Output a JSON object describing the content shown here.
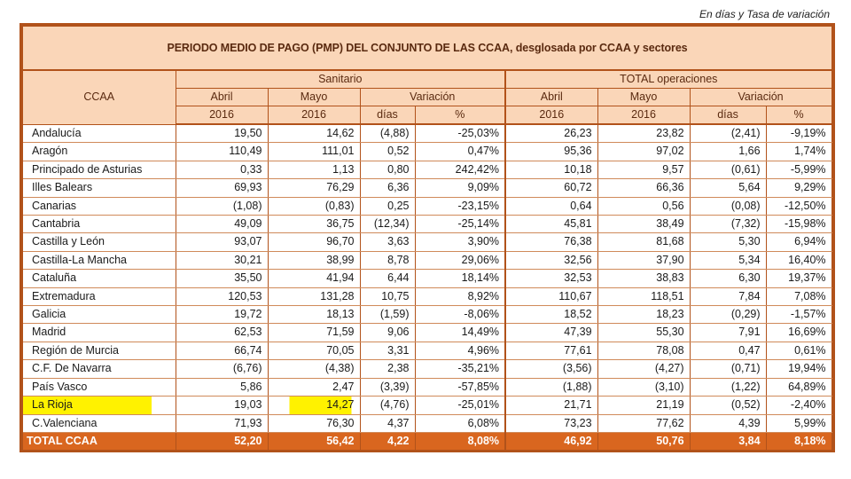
{
  "units_note": "En días y Tasa de variación",
  "title": "PERIODO MEDIO DE PAGO (PMP) DEL CONJUNTO DE LAS CCAA, desglosada por CCAA y sectores",
  "header": {
    "ccaa": "CCAA",
    "sanitario": "Sanitario",
    "total": "TOTAL operaciones",
    "abril": "Abril",
    "mayo": "Mayo",
    "variacion": "Variación",
    "year": "2016",
    "dias": "días",
    "pct": "%"
  },
  "rows": [
    {
      "name": "Andalucía",
      "s_abr": "19,50",
      "s_may": "14,62",
      "s_dias": "(4,88)",
      "s_pct": "-25,03%",
      "t_abr": "26,23",
      "t_may": "23,82",
      "t_dias": "(2,41)",
      "t_pct": "-9,19%"
    },
    {
      "name": "Aragón",
      "s_abr": "110,49",
      "s_may": "111,01",
      "s_dias": "0,52",
      "s_pct": "0,47%",
      "t_abr": "95,36",
      "t_may": "97,02",
      "t_dias": "1,66",
      "t_pct": "1,74%"
    },
    {
      "name": "Principado de Asturias",
      "s_abr": "0,33",
      "s_may": "1,13",
      "s_dias": "0,80",
      "s_pct": "242,42%",
      "t_abr": "10,18",
      "t_may": "9,57",
      "t_dias": "(0,61)",
      "t_pct": "-5,99%"
    },
    {
      "name": "Illes Balears",
      "s_abr": "69,93",
      "s_may": "76,29",
      "s_dias": "6,36",
      "s_pct": "9,09%",
      "t_abr": "60,72",
      "t_may": "66,36",
      "t_dias": "5,64",
      "t_pct": "9,29%"
    },
    {
      "name": "Canarias",
      "s_abr": "(1,08)",
      "s_may": "(0,83)",
      "s_dias": "0,25",
      "s_pct": "-23,15%",
      "t_abr": "0,64",
      "t_may": "0,56",
      "t_dias": "(0,08)",
      "t_pct": "-12,50%"
    },
    {
      "name": "Cantabria",
      "s_abr": "49,09",
      "s_may": "36,75",
      "s_dias": "(12,34)",
      "s_pct": "-25,14%",
      "t_abr": "45,81",
      "t_may": "38,49",
      "t_dias": "(7,32)",
      "t_pct": "-15,98%"
    },
    {
      "name": "Castilla y León",
      "s_abr": "93,07",
      "s_may": "96,70",
      "s_dias": "3,63",
      "s_pct": "3,90%",
      "t_abr": "76,38",
      "t_may": "81,68",
      "t_dias": "5,30",
      "t_pct": "6,94%"
    },
    {
      "name": "Castilla-La Mancha",
      "s_abr": "30,21",
      "s_may": "38,99",
      "s_dias": "8,78",
      "s_pct": "29,06%",
      "t_abr": "32,56",
      "t_may": "37,90",
      "t_dias": "5,34",
      "t_pct": "16,40%"
    },
    {
      "name": "Cataluña",
      "s_abr": "35,50",
      "s_may": "41,94",
      "s_dias": "6,44",
      "s_pct": "18,14%",
      "t_abr": "32,53",
      "t_may": "38,83",
      "t_dias": "6,30",
      "t_pct": "19,37%"
    },
    {
      "name": "Extremadura",
      "s_abr": "120,53",
      "s_may": "131,28",
      "s_dias": "10,75",
      "s_pct": "8,92%",
      "t_abr": "110,67",
      "t_may": "118,51",
      "t_dias": "7,84",
      "t_pct": "7,08%"
    },
    {
      "name": "Galicia",
      "s_abr": "19,72",
      "s_may": "18,13",
      "s_dias": "(1,59)",
      "s_pct": "-8,06%",
      "t_abr": "18,52",
      "t_may": "18,23",
      "t_dias": "(0,29)",
      "t_pct": "-1,57%"
    },
    {
      "name": "Madrid",
      "s_abr": "62,53",
      "s_may": "71,59",
      "s_dias": "9,06",
      "s_pct": "14,49%",
      "t_abr": "47,39",
      "t_may": "55,30",
      "t_dias": "7,91",
      "t_pct": "16,69%"
    },
    {
      "name": "Región de Murcia",
      "s_abr": "66,74",
      "s_may": "70,05",
      "s_dias": "3,31",
      "s_pct": "4,96%",
      "t_abr": "77,61",
      "t_may": "78,08",
      "t_dias": "0,47",
      "t_pct": "0,61%"
    },
    {
      "name": "C.F. De Navarra",
      "s_abr": "(6,76)",
      "s_may": "(4,38)",
      "s_dias": "2,38",
      "s_pct": "-35,21%",
      "t_abr": "(3,56)",
      "t_may": "(4,27)",
      "t_dias": "(0,71)",
      "t_pct": "19,94%"
    },
    {
      "name": "País Vasco",
      "s_abr": "5,86",
      "s_may": "2,47",
      "s_dias": "(3,39)",
      "s_pct": "-57,85%",
      "t_abr": "(1,88)",
      "t_may": "(3,10)",
      "t_dias": "(1,22)",
      "t_pct": "64,89%"
    },
    {
      "name": "La Rioja",
      "s_abr": "19,03",
      "s_may": "14,27",
      "s_dias": "(4,76)",
      "s_pct": "-25,01%",
      "t_abr": "21,71",
      "t_may": "21,19",
      "t_dias": "(0,52)",
      "t_pct": "-2,40%",
      "highlight": true
    },
    {
      "name": "C.Valenciana",
      "s_abr": "71,93",
      "s_may": "76,30",
      "s_dias": "4,37",
      "s_pct": "6,08%",
      "t_abr": "73,23",
      "t_may": "77,62",
      "t_dias": "4,39",
      "t_pct": "5,99%"
    }
  ],
  "total": {
    "name": "TOTAL CCAA",
    "s_abr": "52,20",
    "s_may": "56,42",
    "s_dias": "4,22",
    "s_pct": "8,08%",
    "t_abr": "46,92",
    "t_may": "50,76",
    "t_dias": "3,84",
    "t_pct": "8,18%"
  },
  "colors": {
    "header_bg": "#fad6b8",
    "border": "#b1521a",
    "total_bg": "#d9661f",
    "highlight": "#fff200"
  }
}
